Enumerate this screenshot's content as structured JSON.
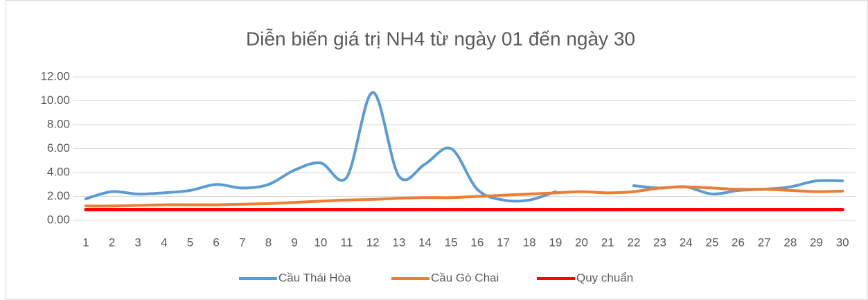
{
  "chart_data": {
    "type": "line",
    "title": "Diễn biến giá trị NH4 từ ngày 01 đến ngày 30",
    "categories": [
      "1",
      "2",
      "3",
      "4",
      "5",
      "6",
      "7",
      "8",
      "9",
      "10",
      "11",
      "12",
      "13",
      "14",
      "15",
      "16",
      "17",
      "18",
      "19",
      "20",
      "21",
      "22",
      "23",
      "24",
      "25",
      "26",
      "27",
      "28",
      "29",
      "30"
    ],
    "series": [
      {
        "name": "Cầu Thái Hòa",
        "color": "#5b9bd5",
        "values": [
          1.8,
          2.4,
          2.2,
          2.3,
          2.5,
          3.0,
          2.7,
          3.0,
          4.2,
          4.8,
          3.6,
          10.7,
          3.7,
          4.7,
          6.0,
          2.6,
          1.7,
          1.7,
          2.4,
          null,
          null,
          2.9,
          2.7,
          2.8,
          2.2,
          2.5,
          2.6,
          2.8,
          3.3,
          3.3
        ]
      },
      {
        "name": "Cầu Gò Chai",
        "color": "#ed7d31",
        "values": [
          1.2,
          1.2,
          1.25,
          1.3,
          1.3,
          1.3,
          1.35,
          1.4,
          1.5,
          1.6,
          1.7,
          1.75,
          1.85,
          1.9,
          1.9,
          2.0,
          2.1,
          2.2,
          2.3,
          2.4,
          2.3,
          2.4,
          2.7,
          2.8,
          2.7,
          2.6,
          2.6,
          2.5,
          2.4,
          2.45
        ]
      },
      {
        "name": "Quy chuẩn",
        "color": "#ff0000",
        "values": [
          0.9,
          0.9,
          0.9,
          0.9,
          0.9,
          0.9,
          0.9,
          0.9,
          0.9,
          0.9,
          0.9,
          0.9,
          0.9,
          0.9,
          0.9,
          0.9,
          0.9,
          0.9,
          0.9,
          0.9,
          0.9,
          0.9,
          0.9,
          0.9,
          0.9,
          0.9,
          0.9,
          0.9,
          0.9,
          0.9
        ]
      }
    ],
    "ylim": [
      0,
      12
    ],
    "yticks": [
      {
        "value": 0,
        "label": "0.00"
      },
      {
        "value": 2,
        "label": "2.00"
      },
      {
        "value": 4,
        "label": "4.00"
      },
      {
        "value": 6,
        "label": "6.00"
      },
      {
        "value": 8,
        "label": "8.00"
      },
      {
        "value": 10,
        "label": "10.00"
      },
      {
        "value": 12,
        "label": "12.00"
      }
    ],
    "grid": true,
    "legend": "bottom",
    "smooth": true
  }
}
